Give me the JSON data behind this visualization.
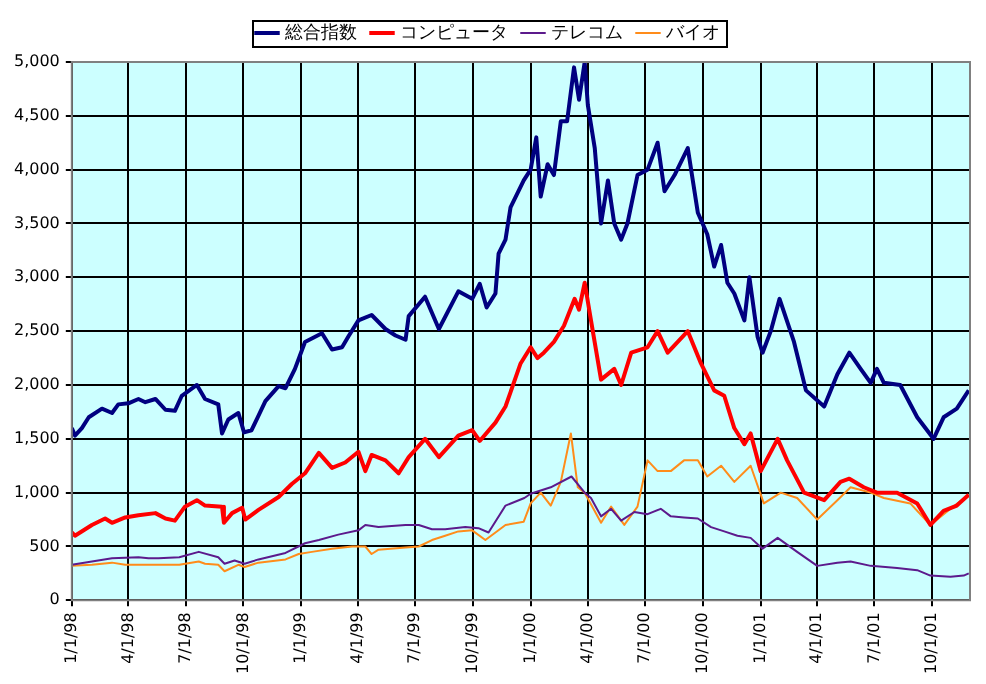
{
  "chart_data": {
    "type": "line",
    "legend": "top",
    "grid": true,
    "marker": "none",
    "line_style": "solid",
    "xlim": [
      "1998-01-01",
      "2001-11-30"
    ],
    "xticks": [
      {
        "value": "1998-01-01",
        "label": "1/1/98"
      },
      {
        "value": "1998-04-01",
        "label": "4/1/98"
      },
      {
        "value": "1998-07-01",
        "label": "7/1/98"
      },
      {
        "value": "1998-10-01",
        "label": "10/1/98"
      },
      {
        "value": "1999-01-01",
        "label": "1/1/99"
      },
      {
        "value": "1999-04-01",
        "label": "4/1/99"
      },
      {
        "value": "1999-07-01",
        "label": "7/1/99"
      },
      {
        "value": "1999-10-01",
        "label": "10/1/99"
      },
      {
        "value": "2000-01-01",
        "label": "1/1/00"
      },
      {
        "value": "2000-04-01",
        "label": "4/1/00"
      },
      {
        "value": "2000-07-01",
        "label": "7/1/00"
      },
      {
        "value": "2000-10-01",
        "label": "10/1/00"
      },
      {
        "value": "2001-01-01",
        "label": "1/1/01"
      },
      {
        "value": "2001-04-01",
        "label": "4/1/01"
      },
      {
        "value": "2001-07-01",
        "label": "7/1/01"
      },
      {
        "value": "2001-10-01",
        "label": "10/1/01"
      }
    ],
    "ylim": [
      0,
      5000
    ],
    "yticks": [
      0,
      500,
      {
        "value": 1000,
        "label": "1,000"
      },
      {
        "value": 1500,
        "label": "1,500"
      },
      {
        "value": 2000,
        "label": "2,000"
      },
      {
        "value": 2500,
        "label": "2,500"
      },
      {
        "value": 3000,
        "label": "3,000"
      },
      {
        "value": 3500,
        "label": "3,500"
      },
      {
        "value": 4000,
        "label": "4,000"
      },
      {
        "value": 4500,
        "label": "4,500"
      },
      {
        "value": 5000,
        "label": "5,000"
      }
    ],
    "series": [
      {
        "name": "総合指数",
        "color": "#000080",
        "x": [
          "1998-01-01",
          "1998-01-06",
          "1998-01-17",
          "1998-01-28",
          "1998-02-18",
          "1998-03-06",
          "1998-03-16",
          "1998-04-01",
          "1998-04-17",
          "1998-04-28",
          "1998-05-14",
          "1998-05-30",
          "1998-06-14",
          "1998-06-25",
          "1998-07-19",
          "1998-08-01",
          "1998-08-22",
          "1998-08-28",
          "1998-09-07",
          "1998-09-23",
          "1998-10-02",
          "1998-10-14",
          "1998-11-05",
          "1998-11-26",
          "1998-12-07",
          "1998-12-22",
          "1999-01-07",
          "1999-02-03",
          "1999-02-19",
          "1999-03-07",
          "1999-03-17",
          "1999-04-02",
          "1999-04-23",
          "1999-05-15",
          "1999-05-31",
          "1999-06-16",
          "1999-06-21",
          "1999-07-17",
          "1999-08-08",
          "1999-09-08",
          "1999-09-30",
          "1999-10-12",
          "1999-10-23",
          "1999-11-06",
          "1999-11-11",
          "1999-11-22",
          "1999-11-30",
          "1999-12-21",
          "2000-01-01",
          "2000-01-10",
          "2000-01-17",
          "2000-01-28",
          "2000-02-07",
          "2000-02-18",
          "2000-02-28",
          "2000-03-10",
          "2000-03-18",
          "2000-03-27",
          "2000-04-01",
          "2000-04-12",
          "2000-04-22",
          "2000-05-03",
          "2000-05-13",
          "2000-05-24",
          "2000-06-03",
          "2000-06-19",
          "2000-07-05",
          "2000-07-21",
          "2000-08-01",
          "2000-08-17",
          "2000-09-07",
          "2000-09-23",
          "2000-10-08",
          "2000-10-19",
          "2000-10-30",
          "2000-11-09",
          "2000-11-20",
          "2000-12-06",
          "2000-12-14",
          "2000-12-27",
          "2001-01-04",
          "2001-01-17",
          "2001-01-31",
          "2001-02-23",
          "2001-03-14",
          "2001-04-12",
          "2001-05-03",
          "2001-05-22",
          "2001-06-09",
          "2001-06-25",
          "2001-07-05",
          "2001-07-16",
          "2001-08-11",
          "2001-09-07",
          "2001-10-03",
          "2001-10-19",
          "2001-11-09",
          "2001-11-28"
        ],
        "values": [
          1600,
          1530,
          1600,
          1700,
          1780,
          1740,
          1820,
          1830,
          1870,
          1840,
          1870,
          1770,
          1760,
          1900,
          2000,
          1870,
          1820,
          1550,
          1680,
          1740,
          1560,
          1580,
          1850,
          1990,
          1970,
          2150,
          2400,
          2480,
          2330,
          2350,
          2450,
          2600,
          2650,
          2520,
          2460,
          2420,
          2640,
          2820,
          2520,
          2870,
          2800,
          2940,
          2720,
          2850,
          3220,
          3350,
          3650,
          3900,
          4000,
          4300,
          3750,
          4050,
          3950,
          4450,
          4450,
          4950,
          4650,
          5000,
          4600,
          4200,
          3500,
          3900,
          3500,
          3350,
          3500,
          3950,
          4000,
          4250,
          3800,
          3950,
          4200,
          3600,
          3400,
          3100,
          3300,
          2950,
          2850,
          2600,
          3000,
          2450,
          2300,
          2500,
          2800,
          2400,
          1950,
          1800,
          2100,
          2300,
          2150,
          2020,
          2150,
          2020,
          2000,
          1700,
          1500,
          1700,
          1780,
          1950
        ]
      },
      {
        "name": "コンピュータ",
        "color": "#ff0000",
        "x": [
          "1998-01-01",
          "1998-01-06",
          "1998-02-02",
          "1998-02-23",
          "1998-03-06",
          "1998-03-27",
          "1998-04-17",
          "1998-05-14",
          "1998-05-30",
          "1998-06-14",
          "1998-06-30",
          "1998-07-19",
          "1998-08-01",
          "1998-08-28",
          "1998-08-31",
          "1998-09-13",
          "1998-09-29",
          "1998-10-04",
          "1998-10-25",
          "1998-11-26",
          "1998-12-17",
          "1999-01-07",
          "1999-01-29",
          "1999-02-19",
          "1999-03-12",
          "1999-04-02",
          "1999-04-13",
          "1999-04-23",
          "1999-05-15",
          "1999-06-05",
          "1999-06-21",
          "1999-07-17",
          "1999-08-08",
          "1999-09-08",
          "1999-09-30",
          "1999-10-12",
          "1999-11-06",
          "1999-11-22",
          "1999-12-16",
          "2000-01-01",
          "2000-01-12",
          "2000-01-22",
          "2000-02-07",
          "2000-02-23",
          "2000-03-11",
          "2000-03-18",
          "2000-03-27",
          "2000-04-06",
          "2000-04-22",
          "2000-05-13",
          "2000-05-24",
          "2000-06-09",
          "2000-07-05",
          "2000-07-21",
          "2000-08-06",
          "2000-09-07",
          "2000-09-28",
          "2000-10-19",
          "2000-11-04",
          "2000-11-20",
          "2000-12-06",
          "2000-12-16",
          "2001-01-01",
          "2001-01-28",
          "2001-02-12",
          "2001-03-11",
          "2001-04-12",
          "2001-05-08",
          "2001-05-22",
          "2001-06-14",
          "2001-07-05",
          "2001-08-06",
          "2001-09-07",
          "2001-09-28",
          "2001-10-19",
          "2001-11-09",
          "2001-11-28"
        ],
        "values": [
          630,
          600,
          700,
          760,
          720,
          770,
          790,
          810,
          760,
          740,
          870,
          930,
          880,
          870,
          720,
          810,
          860,
          750,
          840,
          960,
          1080,
          1180,
          1370,
          1230,
          1280,
          1380,
          1200,
          1350,
          1300,
          1180,
          1330,
          1500,
          1330,
          1530,
          1580,
          1480,
          1650,
          1800,
          2200,
          2350,
          2250,
          2300,
          2400,
          2550,
          2800,
          2700,
          2950,
          2600,
          2050,
          2150,
          2000,
          2300,
          2350,
          2500,
          2300,
          2500,
          2200,
          1950,
          1900,
          1600,
          1450,
          1550,
          1200,
          1500,
          1300,
          1000,
          930,
          1100,
          1130,
          1050,
          1000,
          1000,
          900,
          700,
          830,
          880,
          980
        ]
      },
      {
        "name": "テレコム",
        "color": "#5c1a8c",
        "x": [
          "1998-01-01",
          "1998-02-02",
          "1998-03-06",
          "1998-04-17",
          "1998-05-03",
          "1998-05-19",
          "1998-06-21",
          "1998-07-22",
          "1998-08-22",
          "1998-09-01",
          "1998-09-17",
          "1998-10-03",
          "1998-10-25",
          "1998-12-07",
          "1999-01-07",
          "1999-01-29",
          "1999-03-01",
          "1999-04-02",
          "1999-04-13",
          "1999-05-04",
          "1999-05-25",
          "1999-06-16",
          "1999-07-07",
          "1999-07-28",
          "1999-08-18",
          "1999-09-19",
          "1999-10-10",
          "1999-10-26",
          "1999-11-22",
          "1999-12-22",
          "2000-01-01",
          "2000-02-02",
          "2000-03-06",
          "2000-03-27",
          "2000-04-06",
          "2000-04-22",
          "2000-05-08",
          "2000-05-24",
          "2000-06-14",
          "2000-07-05",
          "2000-07-26",
          "2000-08-11",
          "2000-09-01",
          "2000-09-23",
          "2000-10-14",
          "2000-11-04",
          "2000-11-25",
          "2000-12-16",
          "2001-01-04",
          "2001-01-28",
          "2001-02-28",
          "2001-04-01",
          "2001-05-03",
          "2001-05-24",
          "2001-06-25",
          "2001-08-06",
          "2001-09-07",
          "2001-09-28",
          "2001-10-30",
          "2001-11-20",
          "2001-11-28"
        ],
        "values": [
          330,
          360,
          390,
          400,
          390,
          390,
          400,
          450,
          400,
          340,
          370,
          340,
          380,
          440,
          530,
          560,
          610,
          650,
          700,
          680,
          690,
          700,
          700,
          660,
          660,
          680,
          670,
          630,
          880,
          950,
          990,
          1050,
          1150,
          1000,
          950,
          780,
          850,
          740,
          820,
          800,
          850,
          780,
          770,
          760,
          680,
          640,
          600,
          580,
          480,
          580,
          450,
          320,
          350,
          360,
          320,
          300,
          280,
          230,
          220,
          230,
          250
        ]
      },
      {
        "name": "バイオ",
        "color": "#ff8c1a",
        "x": [
          "1998-01-01",
          "1998-02-02",
          "1998-03-06",
          "1998-03-27",
          "1998-05-19",
          "1998-06-21",
          "1998-07-22",
          "1998-08-01",
          "1998-08-22",
          "1998-09-01",
          "1998-09-23",
          "1998-10-03",
          "1998-10-25",
          "1998-12-07",
          "1998-12-28",
          "1999-01-18",
          "1999-02-19",
          "1999-03-23",
          "1999-04-13",
          "1999-04-23",
          "1999-05-04",
          "1999-06-16",
          "1999-07-07",
          "1999-07-28",
          "1999-08-18",
          "1999-09-08",
          "1999-09-30",
          "1999-10-21",
          "1999-11-22",
          "1999-12-21",
          "2000-01-01",
          "2000-01-17",
          "2000-02-02",
          "2000-02-18",
          "2000-03-05",
          "2000-03-16",
          "2000-03-27",
          "2000-04-22",
          "2000-05-08",
          "2000-05-29",
          "2000-06-19",
          "2000-07-05",
          "2000-07-21",
          "2000-08-11",
          "2000-09-01",
          "2000-09-23",
          "2000-10-08",
          "2000-10-30",
          "2000-11-20",
          "2000-12-16",
          "2001-01-06",
          "2001-02-02",
          "2001-02-28",
          "2001-04-01",
          "2001-05-03",
          "2001-05-24",
          "2001-06-25",
          "2001-07-16",
          "2001-08-27",
          "2001-09-28",
          "2001-10-30",
          "2001-11-28"
        ],
        "values": [
          320,
          330,
          350,
          330,
          330,
          330,
          360,
          340,
          330,
          270,
          330,
          310,
          350,
          380,
          430,
          450,
          480,
          500,
          500,
          430,
          470,
          490,
          500,
          560,
          600,
          640,
          650,
          560,
          700,
          730,
          900,
          1000,
          880,
          1100,
          1550,
          1050,
          1000,
          720,
          870,
          700,
          870,
          1300,
          1200,
          1200,
          1300,
          1300,
          1150,
          1250,
          1100,
          1250,
          900,
          1000,
          950,
          750,
          930,
          1050,
          1000,
          950,
          900,
          700,
          850,
          980
        ]
      }
    ]
  }
}
